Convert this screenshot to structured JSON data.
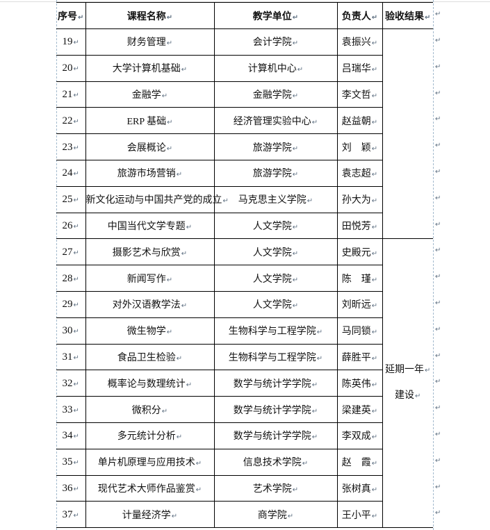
{
  "marks": {
    "pilcrow": "↵"
  },
  "colors": {
    "border": "#000000",
    "text_boundary_dash": "#a3bacd",
    "pilcrow": "#5f7082",
    "background": "#ffffff"
  },
  "table": {
    "headers": {
      "no": "序号",
      "course": "课程名称",
      "unit": "教学单位",
      "leader": "负责人",
      "result": "验收结果"
    },
    "rows": [
      {
        "no": "19",
        "course": "财务管理",
        "unit": "会计学院",
        "leader": "袁振兴"
      },
      {
        "no": "20",
        "course": "大学计算机基础",
        "unit": "计算机中心",
        "leader": "吕瑞华"
      },
      {
        "no": "21",
        "course": "金融学",
        "unit": "金融学院",
        "leader": "李文哲"
      },
      {
        "no": "22",
        "course": "ERP 基础",
        "unit": "经济管理实验中心",
        "leader": "赵益朝"
      },
      {
        "no": "23",
        "course": "会展概论",
        "unit": "旅游学院",
        "leader": "刘　颖"
      },
      {
        "no": "24",
        "course": "旅游市场营销",
        "unit": "旅游学院",
        "leader": "袁志超"
      },
      {
        "no": "25",
        "course": "新文化运动与中国共产党的成立",
        "unit": "马克思主义学院",
        "leader": "孙大为"
      },
      {
        "no": "26",
        "course": "中国当代文学专题",
        "unit": "人文学院",
        "leader": "田悦芳"
      },
      {
        "no": "27",
        "course": "摄影艺术与欣赏",
        "unit": "人文学院",
        "leader": "史殿元"
      },
      {
        "no": "28",
        "course": "新闻写作",
        "unit": "人文学院",
        "leader": "陈　瑾"
      },
      {
        "no": "29",
        "course": "对外汉语教学法",
        "unit": "人文学院",
        "leader": "刘昕远"
      },
      {
        "no": "30",
        "course": "微生物学",
        "unit": "生物科学与工程学院",
        "leader": "马同锁"
      },
      {
        "no": "31",
        "course": "食品卫生检验",
        "unit": "生物科学与工程学院",
        "leader": "薛胜平"
      },
      {
        "no": "32",
        "course": "概率论与数理统计",
        "unit": "数学与统计学学院",
        "leader": "陈英伟"
      },
      {
        "no": "33",
        "course": "微积分",
        "unit": "数学与统计学学院",
        "leader": "梁建英"
      },
      {
        "no": "34",
        "course": "多元统计分析",
        "unit": "数学与统计学学院",
        "leader": "李双成"
      },
      {
        "no": "35",
        "course": "单片机原理与应用技术",
        "unit": "信息技术学院",
        "leader": "赵　霞"
      },
      {
        "no": "36",
        "course": "现代艺术大师作品鉴赏",
        "unit": "艺术学院",
        "leader": "张树真"
      },
      {
        "no": "37",
        "course": "计量经济学",
        "unit": "商学院",
        "leader": "王小平"
      }
    ],
    "result_groups": [
      {
        "rows_from": "19",
        "rows_to": "26",
        "lines": []
      },
      {
        "rows_from": "27",
        "rows_to": "37",
        "lines": [
          "延期一年",
          "建设"
        ]
      }
    ]
  }
}
